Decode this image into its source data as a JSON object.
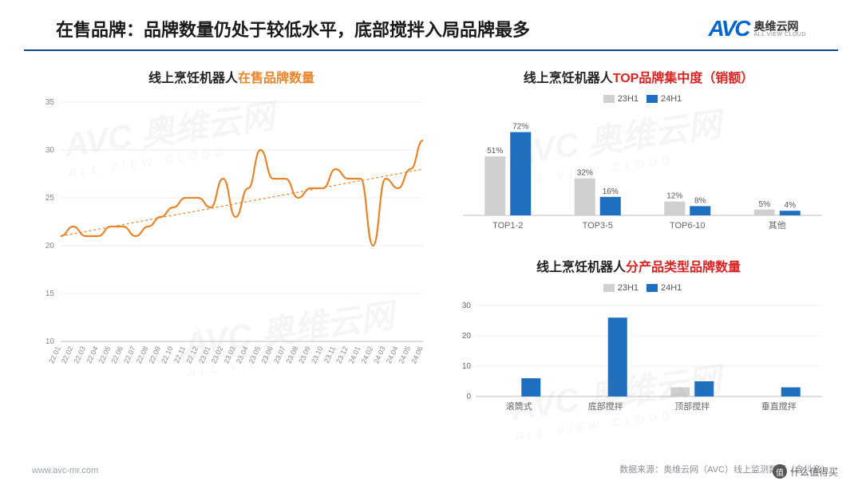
{
  "header": {
    "title": "在售品牌：品牌数量仍处于较低水平，底部搅拌入局品牌最多",
    "logo": {
      "abbr": "AVC",
      "cn": "奥维云网",
      "en": "ALL VIEW CLOUD"
    }
  },
  "line_chart": {
    "type": "line",
    "title_prefix": "线上烹饪机器人",
    "title_highlight": "在售品牌数量",
    "x_labels": [
      "22.01",
      "22.02",
      "22.03",
      "22.04",
      "22.05",
      "22.06",
      "22.07",
      "22.08",
      "22.09",
      "22.10",
      "22.11",
      "22.12",
      "23.01",
      "23.02",
      "23.03",
      "23.04",
      "23.05",
      "23.06",
      "23.07",
      "23.08",
      "23.09",
      "23.10",
      "23.11",
      "23.12",
      "24.01",
      "24.02",
      "24.03",
      "24.04",
      "24.05",
      "24.06"
    ],
    "values": [
      21,
      22,
      21,
      21,
      22,
      22,
      21,
      22,
      23,
      24,
      25,
      25,
      24,
      27,
      23,
      26,
      30,
      27,
      27,
      25,
      26,
      26,
      28,
      27,
      27,
      20,
      27,
      26,
      28,
      31
    ],
    "ylim": [
      10,
      35
    ],
    "ytick_step": 5,
    "line_color": "#e8852c",
    "trend_color": "#e8852c",
    "trend_start": 21,
    "trend_end": 28,
    "grid_color": "#dcdcdc",
    "axis_color": "#bfbfbf",
    "label_fontsize": 9,
    "label_color": "#888888"
  },
  "bar_chart_top": {
    "type": "grouped-bar",
    "title_prefix": "线上烹饪机器人",
    "title_highlight": "TOP品牌集中度（销额）",
    "series": [
      {
        "name": "23H1",
        "color": "#d0d0d0",
        "values": [
          51,
          32,
          12,
          5
        ]
      },
      {
        "name": "24H1",
        "color": "#1f6fc1",
        "values": [
          72,
          16,
          8,
          4
        ]
      }
    ],
    "categories": [
      "TOP1-2",
      "TOP3-5",
      "TOP6-10",
      "其他"
    ],
    "ylim": [
      0,
      80
    ],
    "value_suffix": "%",
    "label_fontsize": 10,
    "label_color": "#666666",
    "axis_color": "#bfbfbf"
  },
  "bar_chart_bottom": {
    "type": "grouped-bar",
    "title_prefix": "线上烹饪机器人",
    "title_highlight": "分产品类型品牌数量",
    "series": [
      {
        "name": "23H1",
        "color": "#d0d0d0",
        "values": [
          0,
          0,
          3,
          0
        ]
      },
      {
        "name": "24H1",
        "color": "#1f6fc1",
        "values": [
          6,
          26,
          5,
          3
        ]
      }
    ],
    "categories": [
      "滚筒式",
      "底部搅拌",
      "顶部搅拌",
      "垂直搅拌"
    ],
    "ylim": [
      0,
      30
    ],
    "ytick_step": 10,
    "value_suffix": "",
    "label_fontsize": 10,
    "label_color": "#666666",
    "axis_color": "#bfbfbf",
    "grid_color": "#e5e5e5"
  },
  "footer": {
    "left": "www.avc-mr.com",
    "right": "数据来源：奥维云网（AVC）线上监测数据（含抖音）"
  },
  "watermark": {
    "main": "AVC 奥维云网",
    "sub": "ALL VIEW CLOUD"
  },
  "badge": {
    "icon": "值",
    "text": "什么值得买"
  }
}
